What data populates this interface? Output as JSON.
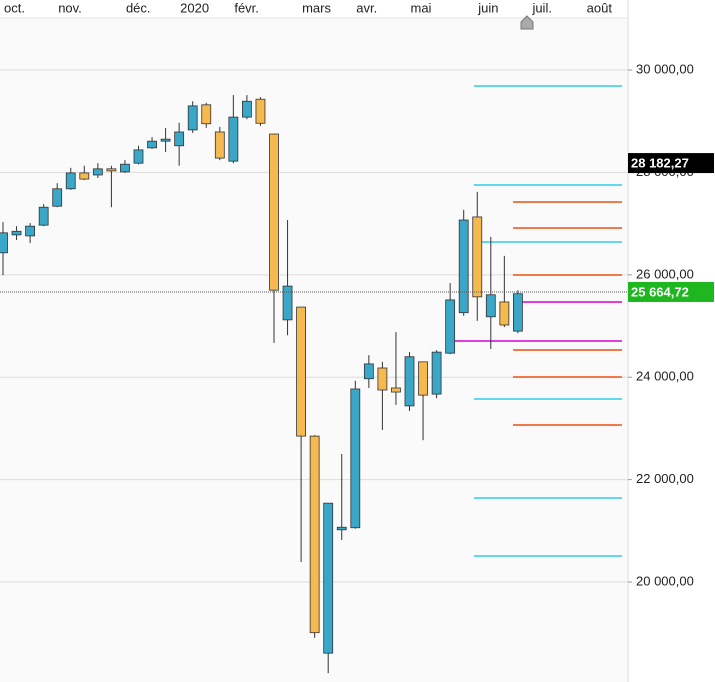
{
  "chart_data": {
    "type": "candlestick",
    "categories": [
      "oct.",
      null,
      null,
      null,
      "nov.",
      null,
      null,
      null,
      null,
      "déc.",
      null,
      null,
      null,
      "2020",
      null,
      null,
      null,
      "févr.",
      null,
      null,
      null,
      null,
      "mars",
      null,
      null,
      null,
      "avr.",
      null,
      null,
      null,
      "mai",
      null,
      null,
      null,
      null,
      "juin",
      null,
      null,
      null,
      "juil.",
      null,
      null,
      null,
      "août",
      null,
      null
    ],
    "open": [
      26430,
      26780,
      26760,
      26970,
      27340,
      27680,
      27990,
      27950,
      28070,
      28010,
      28180,
      28480,
      28610,
      28520,
      28830,
      29320,
      28790,
      28220,
      29080,
      29430,
      28750,
      25120,
      25370,
      22850,
      18610,
      21020,
      21060,
      23970,
      24180,
      23790,
      23440,
      24300,
      23670,
      24470,
      25260,
      27130,
      25180,
      25470,
      24900,
      null,
      null,
      null,
      null,
      null,
      null,
      null
    ],
    "high": [
      27030,
      26950,
      27010,
      27380,
      27790,
      28090,
      28130,
      28180,
      28130,
      28240,
      28520,
      28690,
      28870,
      28970,
      29390,
      29360,
      28890,
      29510,
      29510,
      29470,
      28750,
      27070,
      25370,
      22870,
      21540,
      22500,
      23930,
      24430,
      24300,
      24880,
      24490,
      24300,
      24530,
      25840,
      27270,
      27620,
      26740,
      26370,
      25700,
      null,
      null,
      null,
      null,
      null,
      null,
      null
    ],
    "low": [
      25995,
      26680,
      26620,
      26950,
      27320,
      27660,
      27850,
      27890,
      27320,
      27990,
      28160,
      28460,
      28400,
      28130,
      28770,
      28870,
      28240,
      28180,
      29040,
      28910,
      24670,
      24820,
      20390,
      18910,
      18220,
      20820,
      21040,
      23790,
      22970,
      23460,
      23340,
      22770,
      23590,
      24450,
      25200,
      25100,
      24550,
      24980,
      24860,
      null,
      null,
      null,
      null,
      null,
      null,
      null
    ],
    "close": [
      26820,
      26850,
      26950,
      27320,
      27680,
      27990,
      27870,
      28070,
      28030,
      28160,
      28440,
      28610,
      28650,
      28790,
      29300,
      28950,
      28280,
      29080,
      29390,
      28960,
      25700,
      25780,
      22850,
      19010,
      21540,
      21070,
      23770,
      24260,
      23750,
      23710,
      24400,
      23650,
      24490,
      25510,
      27070,
      25570,
      25610,
      25020,
      25630,
      null,
      null,
      null,
      null,
      null,
      null,
      null
    ],
    "up_color": "#3aa6c8",
    "down_color": "#f6b94f",
    "ylim": [
      18047,
      31016
    ],
    "yticks": [
      {
        "value": 20000,
        "label": "20 000,00"
      },
      {
        "value": 22000,
        "label": "22 000,00"
      },
      {
        "value": 24000,
        "label": "24 000,00"
      },
      {
        "value": 26000,
        "label": "26 000,00"
      },
      {
        "value": 28000,
        "label": "28 000,00"
      },
      {
        "value": 30000,
        "label": "30 000,00"
      }
    ],
    "grid": true,
    "levels": [
      {
        "color": "#5fd8f0",
        "values": [
          29687,
          27754,
          26641,
          23574,
          21641,
          20508
        ]
      },
      {
        "color": "#f07a4a",
        "values": [
          27422,
          26914,
          25996,
          24531,
          24004,
          23067
        ]
      },
      {
        "color": "#e040e0",
        "values": [
          25469
        ]
      },
      {
        "color": "#e040e0",
        "values": [
          24707
        ]
      }
    ],
    "markers": [
      {
        "value": 28182.27,
        "label": "28 182,27",
        "color": "#000000"
      },
      {
        "value": 25664.72,
        "label": "25 664,72",
        "color": "#1fb71f"
      }
    ]
  }
}
